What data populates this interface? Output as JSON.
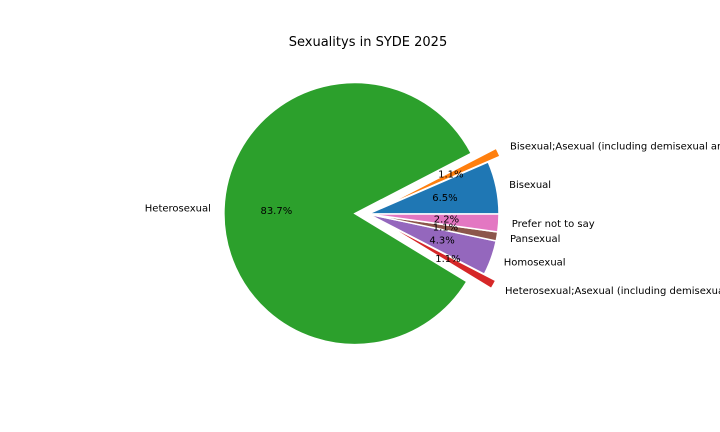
{
  "chart_data": {
    "type": "pie",
    "title": "Sexualitys in SYDE 2025",
    "startangle_deg": 0,
    "slices": [
      {
        "label": "Bisexual",
        "percent": 6.5,
        "color": "#1f77b4",
        "explode": false,
        "pct_text": "6.5%"
      },
      {
        "label": "Bisexual;Asexual (including demisexual and graysexual)",
        "percent": 1.1,
        "color": "#ff7f0e",
        "explode": true,
        "pct_text": "1.1%"
      },
      {
        "label": "Heterosexual",
        "percent": 83.7,
        "color": "#2ca02c",
        "explode": true,
        "pct_text": "83.7%"
      },
      {
        "label": "Heterosexual;Asexual (including demisexual and graysexual)",
        "percent": 1.1,
        "color": "#d62728",
        "explode": true,
        "pct_text": "1.1%"
      },
      {
        "label": "Homosexual",
        "percent": 4.3,
        "color": "#9467bd",
        "explode": false,
        "pct_text": "4.3%"
      },
      {
        "label": "Pansexual",
        "percent": 1.1,
        "color": "#8c564b",
        "explode": false,
        "pct_text": "1.1%"
      },
      {
        "label": "Prefer not to say",
        "percent": 2.2,
        "color": "#e377c2",
        "explode": false,
        "pct_text": "2.2%"
      }
    ]
  }
}
